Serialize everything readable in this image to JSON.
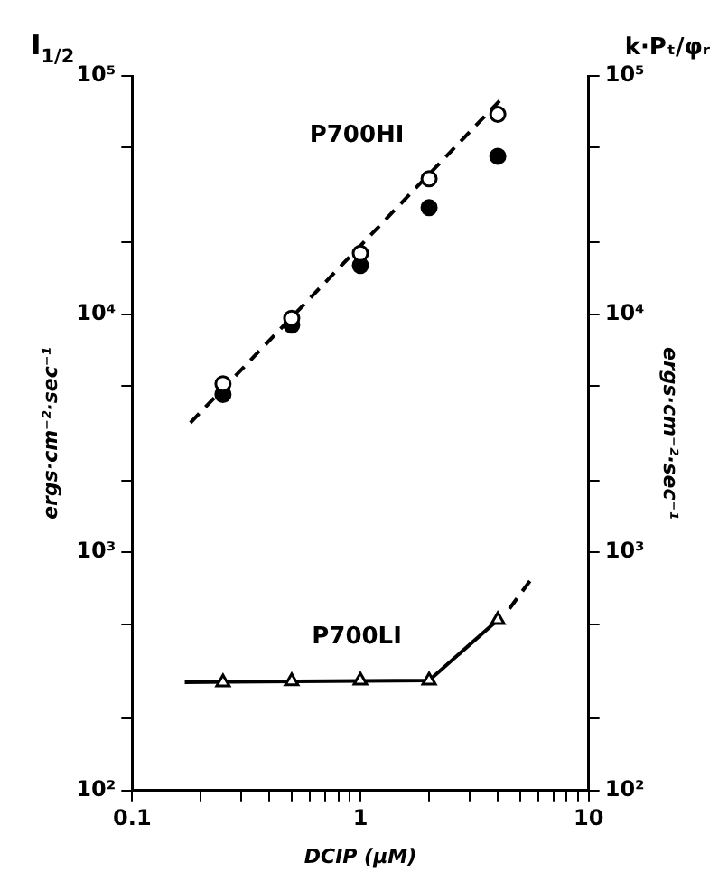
{
  "chart_data": {
    "type": "scatter",
    "xlabel": "DCIP (μM)",
    "ylabel": "ergs·cm⁻²·sec⁻¹",
    "y2label": "ergs·cm⁻²·sec⁻¹",
    "annotations": [
      "I$_{1/2}$",
      "k·Pₜ/φᵣ"
    ],
    "log": "xy",
    "grid": false,
    "xlim": [
      0.1,
      10
    ],
    "xticks": [
      0.1,
      {
        "value": 0.2,
        "label": null
      },
      {
        "value": 0.3,
        "label": null
      },
      {
        "value": 0.4,
        "label": null
      },
      {
        "value": 0.5,
        "label": null
      },
      {
        "value": 0.6,
        "label": null
      },
      {
        "value": 0.7,
        "label": null
      },
      {
        "value": 0.8,
        "label": null
      },
      {
        "value": 0.9,
        "label": null
      },
      1,
      {
        "value": 2,
        "label": null
      },
      {
        "value": 3,
        "label": null
      },
      {
        "value": 4,
        "label": null
      },
      {
        "value": 5,
        "label": null
      },
      {
        "value": 6,
        "label": null
      },
      {
        "value": 7,
        "label": null
      },
      {
        "value": 8,
        "label": null
      },
      {
        "value": 9,
        "label": null
      },
      10
    ],
    "ylim": [
      100,
      100000
    ],
    "yticks": [
      {
        "value": 100,
        "label": "10²"
      },
      {
        "value": 200,
        "label": null
      },
      {
        "value": 500,
        "label": null
      },
      {
        "value": 1000,
        "label": "10³"
      },
      {
        "value": 2000,
        "label": null
      },
      {
        "value": 5000,
        "label": null
      },
      {
        "value": 10000,
        "label": "10⁴"
      },
      {
        "value": 20000,
        "label": null
      },
      {
        "value": 50000,
        "label": null
      },
      {
        "value": 100000,
        "label": "10⁵"
      }
    ],
    "series": [
      {
        "name": "P700HI",
        "type": "scatter",
        "marker": "circle",
        "color": "#ffffff",
        "x": [
          0.25,
          0.5,
          1,
          2,
          4
        ],
        "values": [
          5100,
          9600,
          18000,
          37000,
          69000
        ]
      },
      {
        "type": "scatter",
        "marker": "circle",
        "color": "#000000",
        "x": [
          0.25,
          0.5,
          1,
          2,
          4
        ],
        "values": [
          4600,
          9000,
          16000,
          28000,
          46000
        ]
      },
      {
        "type": "line",
        "marker": "none",
        "line_style": "dashed",
        "color": "#000000",
        "x": [
          0.18,
          4.3
        ],
        "values": [
          3500,
          83000
        ]
      },
      {
        "name": "P700LI",
        "type": "scatter",
        "marker": "triangle",
        "color": "#ffffff",
        "x": [
          0.25,
          0.5,
          1,
          2,
          4
        ],
        "values": [
          285,
          288,
          290,
          290,
          520
        ]
      },
      {
        "type": "line",
        "marker": "none",
        "line_style": "solid",
        "color": "#000000",
        "x": [
          0.17,
          2,
          4
        ],
        "values": [
          285,
          290,
          520
        ]
      },
      {
        "type": "line",
        "marker": "none",
        "line_style": "dashed",
        "color": "#000000",
        "x": [
          4.5,
          5.6
        ],
        "values": [
          580,
          770
        ]
      }
    ]
  }
}
